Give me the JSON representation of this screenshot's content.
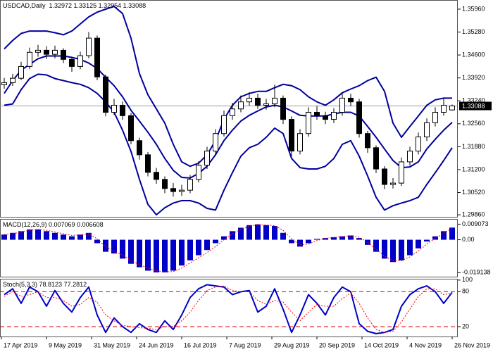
{
  "chart_data": [
    {
      "type": "candlestick",
      "title": "USDCAD,Daily",
      "subtitle": "1.32972 1.33125 1.32954 1.33088",
      "x": [
        1,
        4,
        7,
        10,
        13,
        16,
        19,
        22,
        25,
        28,
        31,
        34,
        37,
        40,
        43,
        46,
        49,
        52,
        55,
        58,
        61,
        64,
        67,
        70,
        73,
        76,
        79,
        82,
        85,
        88,
        91,
        94,
        97,
        100,
        103,
        106,
        109,
        112,
        115,
        118,
        121,
        124,
        127,
        130,
        133,
        136,
        139,
        142,
        145,
        148,
        151,
        154,
        157,
        160
      ],
      "xlim": [
        -0.5,
        162
      ],
      "open": [
        1.3372,
        1.3378,
        1.3391,
        1.3426,
        1.3468,
        1.3474,
        1.3462,
        1.3474,
        1.3447,
        1.3426,
        1.3458,
        1.351,
        1.3395,
        1.329,
        1.3311,
        1.328,
        1.3206,
        1.3164,
        1.3112,
        1.3091,
        1.3064,
        1.3055,
        1.3059,
        1.3091,
        1.3133,
        1.3175,
        1.3227,
        1.328,
        1.33,
        1.3321,
        1.3332,
        1.3311,
        1.3315,
        1.3332,
        1.3269,
        1.3175,
        1.3227,
        1.329,
        1.328,
        1.3269,
        1.329,
        1.3332,
        1.3321,
        1.3227,
        1.3185,
        1.3122,
        1.3076,
        1.308,
        1.3143,
        1.3175,
        1.3217,
        1.3259,
        1.329,
        1.3297
      ],
      "high": [
        1.3392,
        1.3404,
        1.344,
        1.3482,
        1.349,
        1.3486,
        1.3488,
        1.348,
        1.3455,
        1.347,
        1.3528,
        1.3518,
        1.3402,
        1.333,
        1.3322,
        1.3288,
        1.3215,
        1.3172,
        1.3125,
        1.31,
        1.308,
        1.3075,
        1.3104,
        1.3145,
        1.3188,
        1.324,
        1.3295,
        1.3318,
        1.334,
        1.335,
        1.3345,
        1.333,
        1.3372,
        1.334,
        1.3278,
        1.324,
        1.3305,
        1.3308,
        1.3292,
        1.3302,
        1.3348,
        1.3345,
        1.333,
        1.3235,
        1.3192,
        1.313,
        1.3095,
        1.3156,
        1.3188,
        1.323,
        1.3272,
        1.3305,
        1.333,
        1.3313
      ],
      "low": [
        1.336,
        1.3368,
        1.3385,
        1.3418,
        1.3455,
        1.3448,
        1.345,
        1.3436,
        1.341,
        1.3418,
        1.345,
        1.3385,
        1.3278,
        1.3282,
        1.3268,
        1.3195,
        1.315,
        1.31,
        1.3078,
        1.305,
        1.304,
        1.3042,
        1.305,
        1.3082,
        1.3122,
        1.3165,
        1.3218,
        1.3268,
        1.329,
        1.331,
        1.33,
        1.3298,
        1.3305,
        1.3255,
        1.316,
        1.3165,
        1.3218,
        1.3268,
        1.3255,
        1.3258,
        1.328,
        1.3308,
        1.3215,
        1.317,
        1.311,
        1.3062,
        1.3064,
        1.3072,
        1.3132,
        1.3165,
        1.3205,
        1.3248,
        1.328,
        1.3295
      ],
      "close": [
        1.3378,
        1.3391,
        1.3426,
        1.3468,
        1.3474,
        1.3462,
        1.3474,
        1.3447,
        1.3426,
        1.3458,
        1.351,
        1.3395,
        1.329,
        1.3311,
        1.328,
        1.3206,
        1.3164,
        1.3112,
        1.3091,
        1.3064,
        1.3055,
        1.3059,
        1.3091,
        1.3133,
        1.3175,
        1.3227,
        1.328,
        1.33,
        1.3321,
        1.3332,
        1.3311,
        1.3315,
        1.3332,
        1.3269,
        1.3175,
        1.3227,
        1.329,
        1.328,
        1.3269,
        1.329,
        1.3332,
        1.3321,
        1.3227,
        1.3185,
        1.3122,
        1.3076,
        1.308,
        1.3143,
        1.3175,
        1.3217,
        1.3259,
        1.329,
        1.3311,
        1.3309
      ],
      "color": "#000000",
      "bands": [
        {
          "color": "#00009c",
          "values": [
            1.3478,
            1.3503,
            1.3524,
            1.3531,
            1.3531,
            1.3531,
            1.3526,
            1.352,
            1.3531,
            1.3552,
            1.3573,
            1.3587,
            1.3596,
            1.3604,
            1.3583,
            1.351,
            1.3405,
            1.3342,
            1.33,
            1.3258,
            1.3195,
            1.3143,
            1.313,
            1.3139,
            1.3164,
            1.3206,
            1.3269,
            1.3311,
            1.3336,
            1.3346,
            1.3352,
            1.3352,
            1.3363,
            1.3373,
            1.3369,
            1.3357,
            1.3336,
            1.3321,
            1.3311,
            1.3327,
            1.3348,
            1.3359,
            1.3369,
            1.3384,
            1.3394,
            1.3352,
            1.3258,
            1.3216,
            1.3248,
            1.3279,
            1.3311,
            1.3327,
            1.3332,
            1.3332
          ]
        },
        {
          "color": "#00009c",
          "values": [
            1.3346,
            1.3384,
            1.3415,
            1.3432,
            1.3449,
            1.3457,
            1.3457,
            1.3457,
            1.3453,
            1.3447,
            1.3436,
            1.342,
            1.3394,
            1.3369,
            1.3336,
            1.3296,
            1.3264,
            1.3231,
            1.3195,
            1.3153,
            1.3118,
            1.3097,
            1.3095,
            1.3109,
            1.313,
            1.3164,
            1.3206,
            1.3237,
            1.3264,
            1.3281,
            1.3294,
            1.3306,
            1.3311,
            1.3306,
            1.3294,
            1.3281,
            1.3279,
            1.3279,
            1.3279,
            1.3285,
            1.329,
            1.329,
            1.3279,
            1.3248,
            1.3216,
            1.3181,
            1.3147,
            1.3126,
            1.3128,
            1.3143,
            1.3181,
            1.321,
            1.3237,
            1.326
          ]
        },
        {
          "color": "#00009c",
          "values": [
            1.3311,
            1.3315,
            1.3357,
            1.339,
            1.3403,
            1.3401,
            1.339,
            1.3384,
            1.3378,
            1.3373,
            1.3363,
            1.3346,
            1.3321,
            1.329,
            1.3237,
            1.3174,
            1.3091,
            1.3017,
            1.2986,
            1.3007,
            1.3021,
            1.3028,
            1.3028,
            1.3021,
            1.3005,
            1.3,
            1.3059,
            1.3111,
            1.316,
            1.3185,
            1.3195,
            1.3216,
            1.3243,
            1.3227,
            1.3153,
            1.3126,
            1.3122,
            1.3122,
            1.313,
            1.3153,
            1.3195,
            1.3206,
            1.316,
            1.3101,
            1.3038,
            1.3,
            1.3013,
            1.3021,
            1.3028,
            1.3038,
            1.3076,
            1.3111,
            1.3147,
            1.3185
          ]
        }
      ],
      "ylim": [
        1.298,
        1.3621
      ],
      "yticks": [
        {
          "value": 1.3596,
          "label": "1.35960"
        },
        {
          "value": 1.3528,
          "label": "1.35280"
        },
        {
          "value": 1.346,
          "label": "1.34600"
        },
        {
          "value": 1.3392,
          "label": "1.33920"
        },
        {
          "value": 1.3324,
          "label": "1.33240"
        },
        {
          "value": 1.3256,
          "label": "1.32560"
        },
        {
          "value": 1.3188,
          "label": "1.31880"
        },
        {
          "value": 1.312,
          "label": "1.31200"
        },
        {
          "value": 1.3052,
          "label": "1.30520"
        },
        {
          "value": 1.2986,
          "label": "1.29860"
        }
      ],
      "last": {
        "value": 1.33088,
        "label": "1.33088"
      }
    },
    {
      "type": "bar",
      "title": "MACD(12,26,9) 0.007069 0.006608",
      "values": [
        0.003,
        0.004,
        0.005,
        0.006,
        0.006,
        0.005,
        0.004,
        0.003,
        0.002,
        0.003,
        0.004,
        -0.002,
        -0.007,
        -0.008,
        -0.011,
        -0.014,
        -0.016,
        -0.018,
        -0.019,
        -0.019,
        -0.018,
        -0.015,
        -0.012,
        -0.009,
        -0.006,
        -0.002,
        0.002,
        0.005,
        0.007,
        0.0085,
        0.009,
        0.0085,
        0.008,
        0.004,
        -0.002,
        -0.004,
        -0.002,
        0.0005,
        0.001,
        0.0015,
        0.002,
        0.0025,
        0.001,
        -0.003,
        -0.007,
        -0.011,
        -0.013,
        -0.012,
        -0.009,
        -0.005,
        -0.001,
        0.002,
        0.005,
        0.007069
      ],
      "color": "#0000c8",
      "series": [
        {
          "color": "#ff0000",
          "values": [
            0.003,
            0.0035,
            0.0045,
            0.0055,
            0.006,
            0.0055,
            0.0045,
            0.0035,
            0.0025,
            0.0028,
            0.0035,
            0.0005,
            -0.004,
            -0.0065,
            -0.009,
            -0.012,
            -0.0145,
            -0.0165,
            -0.018,
            -0.0188,
            -0.0185,
            -0.0165,
            -0.0135,
            -0.0105,
            -0.0075,
            -0.004,
            0,
            0.0035,
            0.006,
            0.0078,
            0.0087,
            0.0086,
            0.0082,
            0.0055,
            0.0005,
            -0.003,
            -0.0025,
            -0.0005,
            0.0008,
            0.0013,
            0.0018,
            0.0023,
            0.0015,
            -0.0015,
            -0.0055,
            -0.0095,
            -0.0122,
            -0.0122,
            -0.01,
            -0.0065,
            -0.0025,
            0.0008,
            0.0038,
            0.006608
          ]
        }
      ],
      "ylim": [
        -0.0215,
        0.0117
      ],
      "yticks": [
        0.009073,
        {
          "value": 0,
          "label": "0.00"
        },
        -0.019138
      ]
    },
    {
      "type": "line",
      "title": "Stoch(5,3,3) 78.8123 77.2812",
      "series": [
        {
          "color": "#0000c8",
          "values": [
            75,
            85,
            60,
            88,
            80,
            55,
            82,
            60,
            45,
            70,
            88,
            40,
            10,
            35,
            20,
            10,
            25,
            15,
            10,
            30,
            15,
            40,
            70,
            85,
            92,
            90,
            88,
            75,
            80,
            82,
            45,
            55,
            85,
            50,
            10,
            40,
            75,
            60,
            40,
            70,
            88,
            80,
            25,
            12,
            8,
            10,
            15,
            55,
            75,
            85,
            90,
            80,
            60,
            78.8123
          ]
        },
        {
          "color": "#ff0000",
          "values": [
            72,
            80,
            72,
            75,
            80,
            70,
            70,
            65,
            55,
            58,
            70,
            62,
            40,
            30,
            22,
            20,
            18,
            17,
            15,
            20,
            20,
            30,
            45,
            65,
            82,
            88,
            90,
            82,
            80,
            80,
            65,
            58,
            65,
            62,
            45,
            30,
            45,
            58,
            55,
            55,
            68,
            78,
            60,
            35,
            15,
            10,
            12,
            28,
            50,
            72,
            85,
            85,
            75,
            77.2812
          ]
        }
      ],
      "levels": [
        80,
        20
      ],
      "level_color": "#e00000",
      "ylim": [
        3,
        101
      ],
      "yticks": [
        100,
        80,
        20
      ],
      "xticks": [
        {
          "value": 0,
          "label": "17 Apr 2019"
        },
        {
          "value": 16,
          "label": "9 May 2019"
        },
        {
          "value": 32,
          "label": "31 May 2019"
        },
        {
          "value": 48,
          "label": "24 Jun 2019"
        },
        {
          "value": 64,
          "label": "16 Jul 2019"
        },
        {
          "value": 80,
          "label": "7 Aug 2019"
        },
        {
          "value": 96,
          "label": "29 Aug 2019"
        },
        {
          "value": 112,
          "label": "20 Sep 2019"
        },
        {
          "value": 128,
          "label": "14 Oct 2019"
        },
        {
          "value": 144,
          "label": "4 Nov 2019"
        },
        {
          "value": 160,
          "label": "26 Nov 2019"
        }
      ]
    }
  ]
}
